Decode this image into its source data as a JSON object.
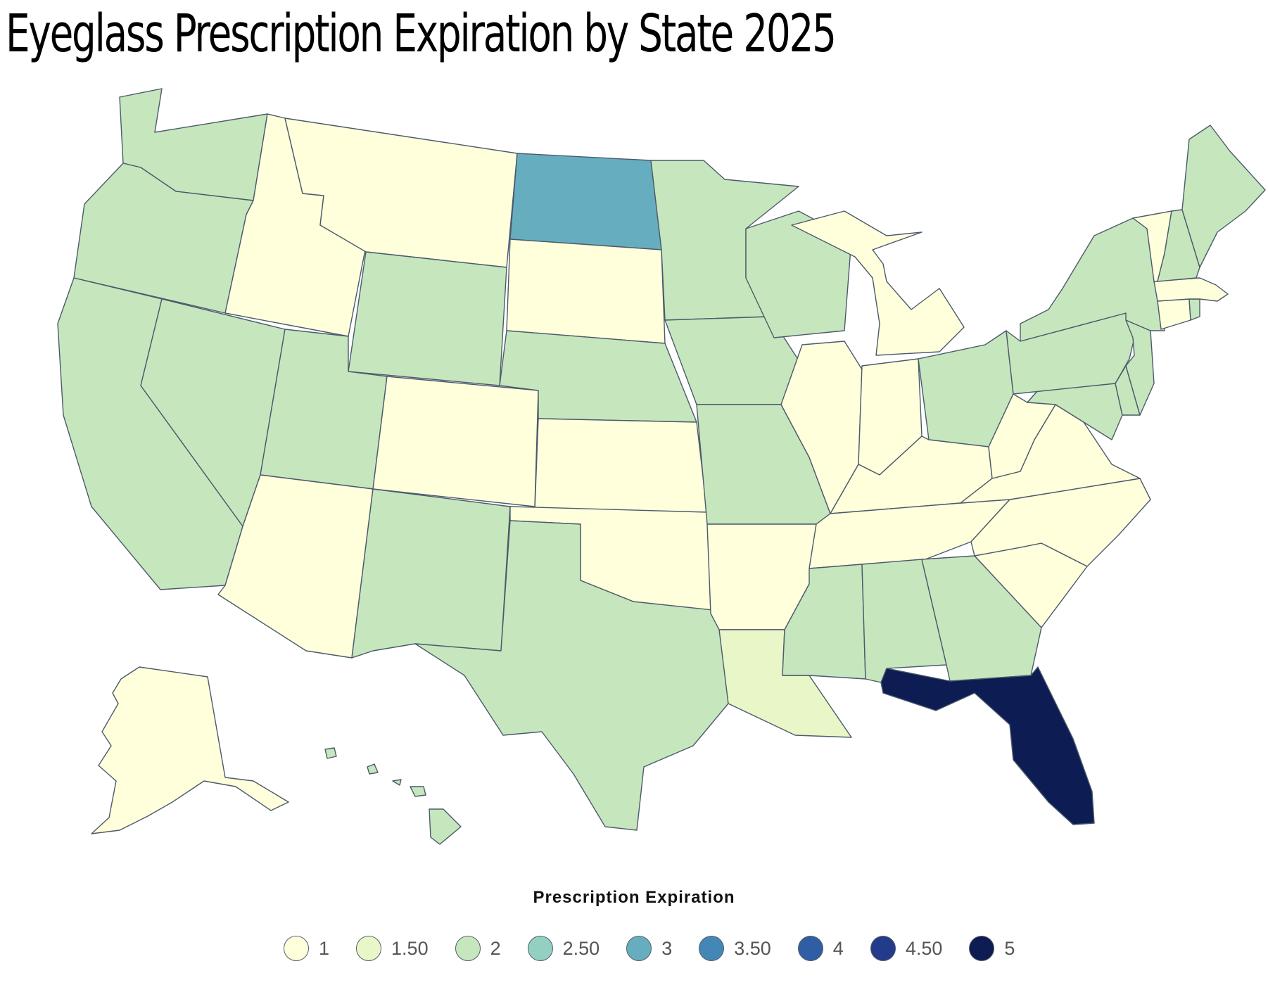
{
  "title": "Eyeglass Prescription Expiration by State 2025",
  "legend": {
    "title": "Prescription Expiration",
    "items": [
      {
        "label": "1",
        "color": "#ffffdc"
      },
      {
        "label": "1.50",
        "color": "#e8f6c8"
      },
      {
        "label": "2",
        "color": "#c6e6bd"
      },
      {
        "label": "2.50",
        "color": "#93d0c2"
      },
      {
        "label": "3",
        "color": "#66aebf"
      },
      {
        "label": "3.50",
        "color": "#4387b7"
      },
      {
        "label": "4",
        "color": "#2f5ea5"
      },
      {
        "label": "4.50",
        "color": "#233b8a"
      },
      {
        "label": "5",
        "color": "#0d1c52"
      }
    ]
  },
  "chart_data": {
    "type": "choropleth",
    "title": "Eyeglass Prescription Expiration by State 2025",
    "legend_title": "Prescription Expiration",
    "scale": [
      1,
      1.5,
      2,
      2.5,
      3,
      3.5,
      4,
      4.5,
      5
    ],
    "states": [
      {
        "state": "Washington",
        "value": 2
      },
      {
        "state": "Oregon",
        "value": 2
      },
      {
        "state": "California",
        "value": 2
      },
      {
        "state": "Nevada",
        "value": 2
      },
      {
        "state": "Idaho",
        "value": 1
      },
      {
        "state": "Montana",
        "value": 1
      },
      {
        "state": "Wyoming",
        "value": 2
      },
      {
        "state": "Utah",
        "value": 2
      },
      {
        "state": "Arizona",
        "value": 1
      },
      {
        "state": "Colorado",
        "value": 1
      },
      {
        "state": "New Mexico",
        "value": 2
      },
      {
        "state": "North Dakota",
        "value": 3
      },
      {
        "state": "South Dakota",
        "value": 1
      },
      {
        "state": "Nebraska",
        "value": 2
      },
      {
        "state": "Kansas",
        "value": 1
      },
      {
        "state": "Oklahoma",
        "value": 1
      },
      {
        "state": "Texas",
        "value": 2
      },
      {
        "state": "Minnesota",
        "value": 2
      },
      {
        "state": "Iowa",
        "value": 2
      },
      {
        "state": "Missouri",
        "value": 2
      },
      {
        "state": "Arkansas",
        "value": 1
      },
      {
        "state": "Louisiana",
        "value": 1.5
      },
      {
        "state": "Wisconsin",
        "value": 2
      },
      {
        "state": "Illinois",
        "value": 1
      },
      {
        "state": "Michigan",
        "value": 1
      },
      {
        "state": "Indiana",
        "value": 1
      },
      {
        "state": "Ohio",
        "value": 2
      },
      {
        "state": "Kentucky",
        "value": 1
      },
      {
        "state": "Tennessee",
        "value": 1
      },
      {
        "state": "Mississippi",
        "value": 2
      },
      {
        "state": "Alabama",
        "value": 2
      },
      {
        "state": "Georgia",
        "value": 2
      },
      {
        "state": "Florida",
        "value": 5
      },
      {
        "state": "South Carolina",
        "value": 1
      },
      {
        "state": "North Carolina",
        "value": 1
      },
      {
        "state": "Virginia",
        "value": 1
      },
      {
        "state": "West Virginia",
        "value": 1
      },
      {
        "state": "Maryland",
        "value": 2
      },
      {
        "state": "Delaware",
        "value": 2
      },
      {
        "state": "Pennsylvania",
        "value": 2
      },
      {
        "state": "New Jersey",
        "value": 2
      },
      {
        "state": "New York",
        "value": 2
      },
      {
        "state": "Connecticut",
        "value": 1
      },
      {
        "state": "Rhode Island",
        "value": 2
      },
      {
        "state": "Massachusetts",
        "value": 1
      },
      {
        "state": "Vermont",
        "value": 1
      },
      {
        "state": "New Hampshire",
        "value": 2
      },
      {
        "state": "Maine",
        "value": 2
      },
      {
        "state": "Alaska",
        "value": 1
      },
      {
        "state": "Hawaii",
        "value": 2
      }
    ]
  }
}
